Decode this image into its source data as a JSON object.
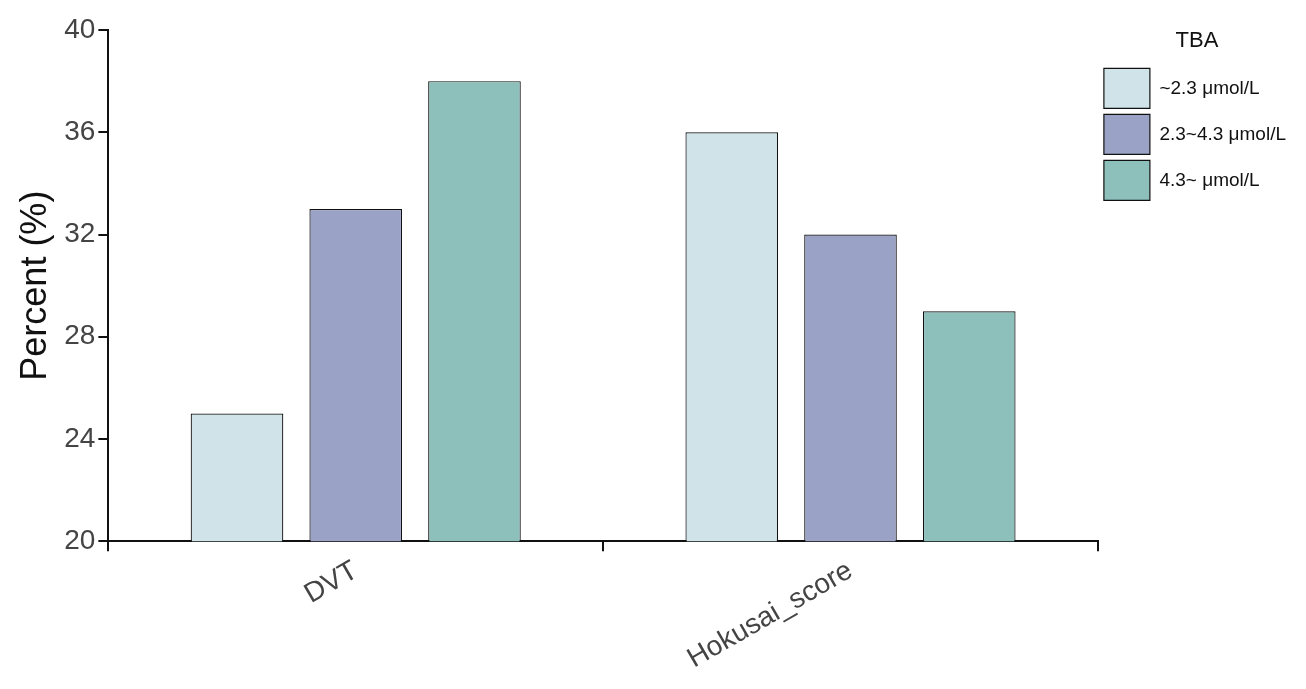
{
  "chart_data": {
    "type": "bar",
    "ylabel": "Percent (%)",
    "legend_title": "TBA",
    "categories": [
      "DVT",
      "Hokusai_score"
    ],
    "series": [
      {
        "name": "~2.3 μmol/L",
        "color": "#cfe3e8",
        "values": [
          25,
          36
        ]
      },
      {
        "name": "2.3~4.3 μmol/L",
        "color": "#9aa3c5",
        "values": [
          33,
          32
        ]
      },
      {
        "name": "4.3~ μmol/L",
        "color": "#8dbfbb",
        "values": [
          38,
          29
        ]
      }
    ],
    "ylim": [
      20,
      40
    ],
    "yticks": [
      20,
      24,
      28,
      32,
      36,
      40
    ],
    "legend": "top right"
  }
}
